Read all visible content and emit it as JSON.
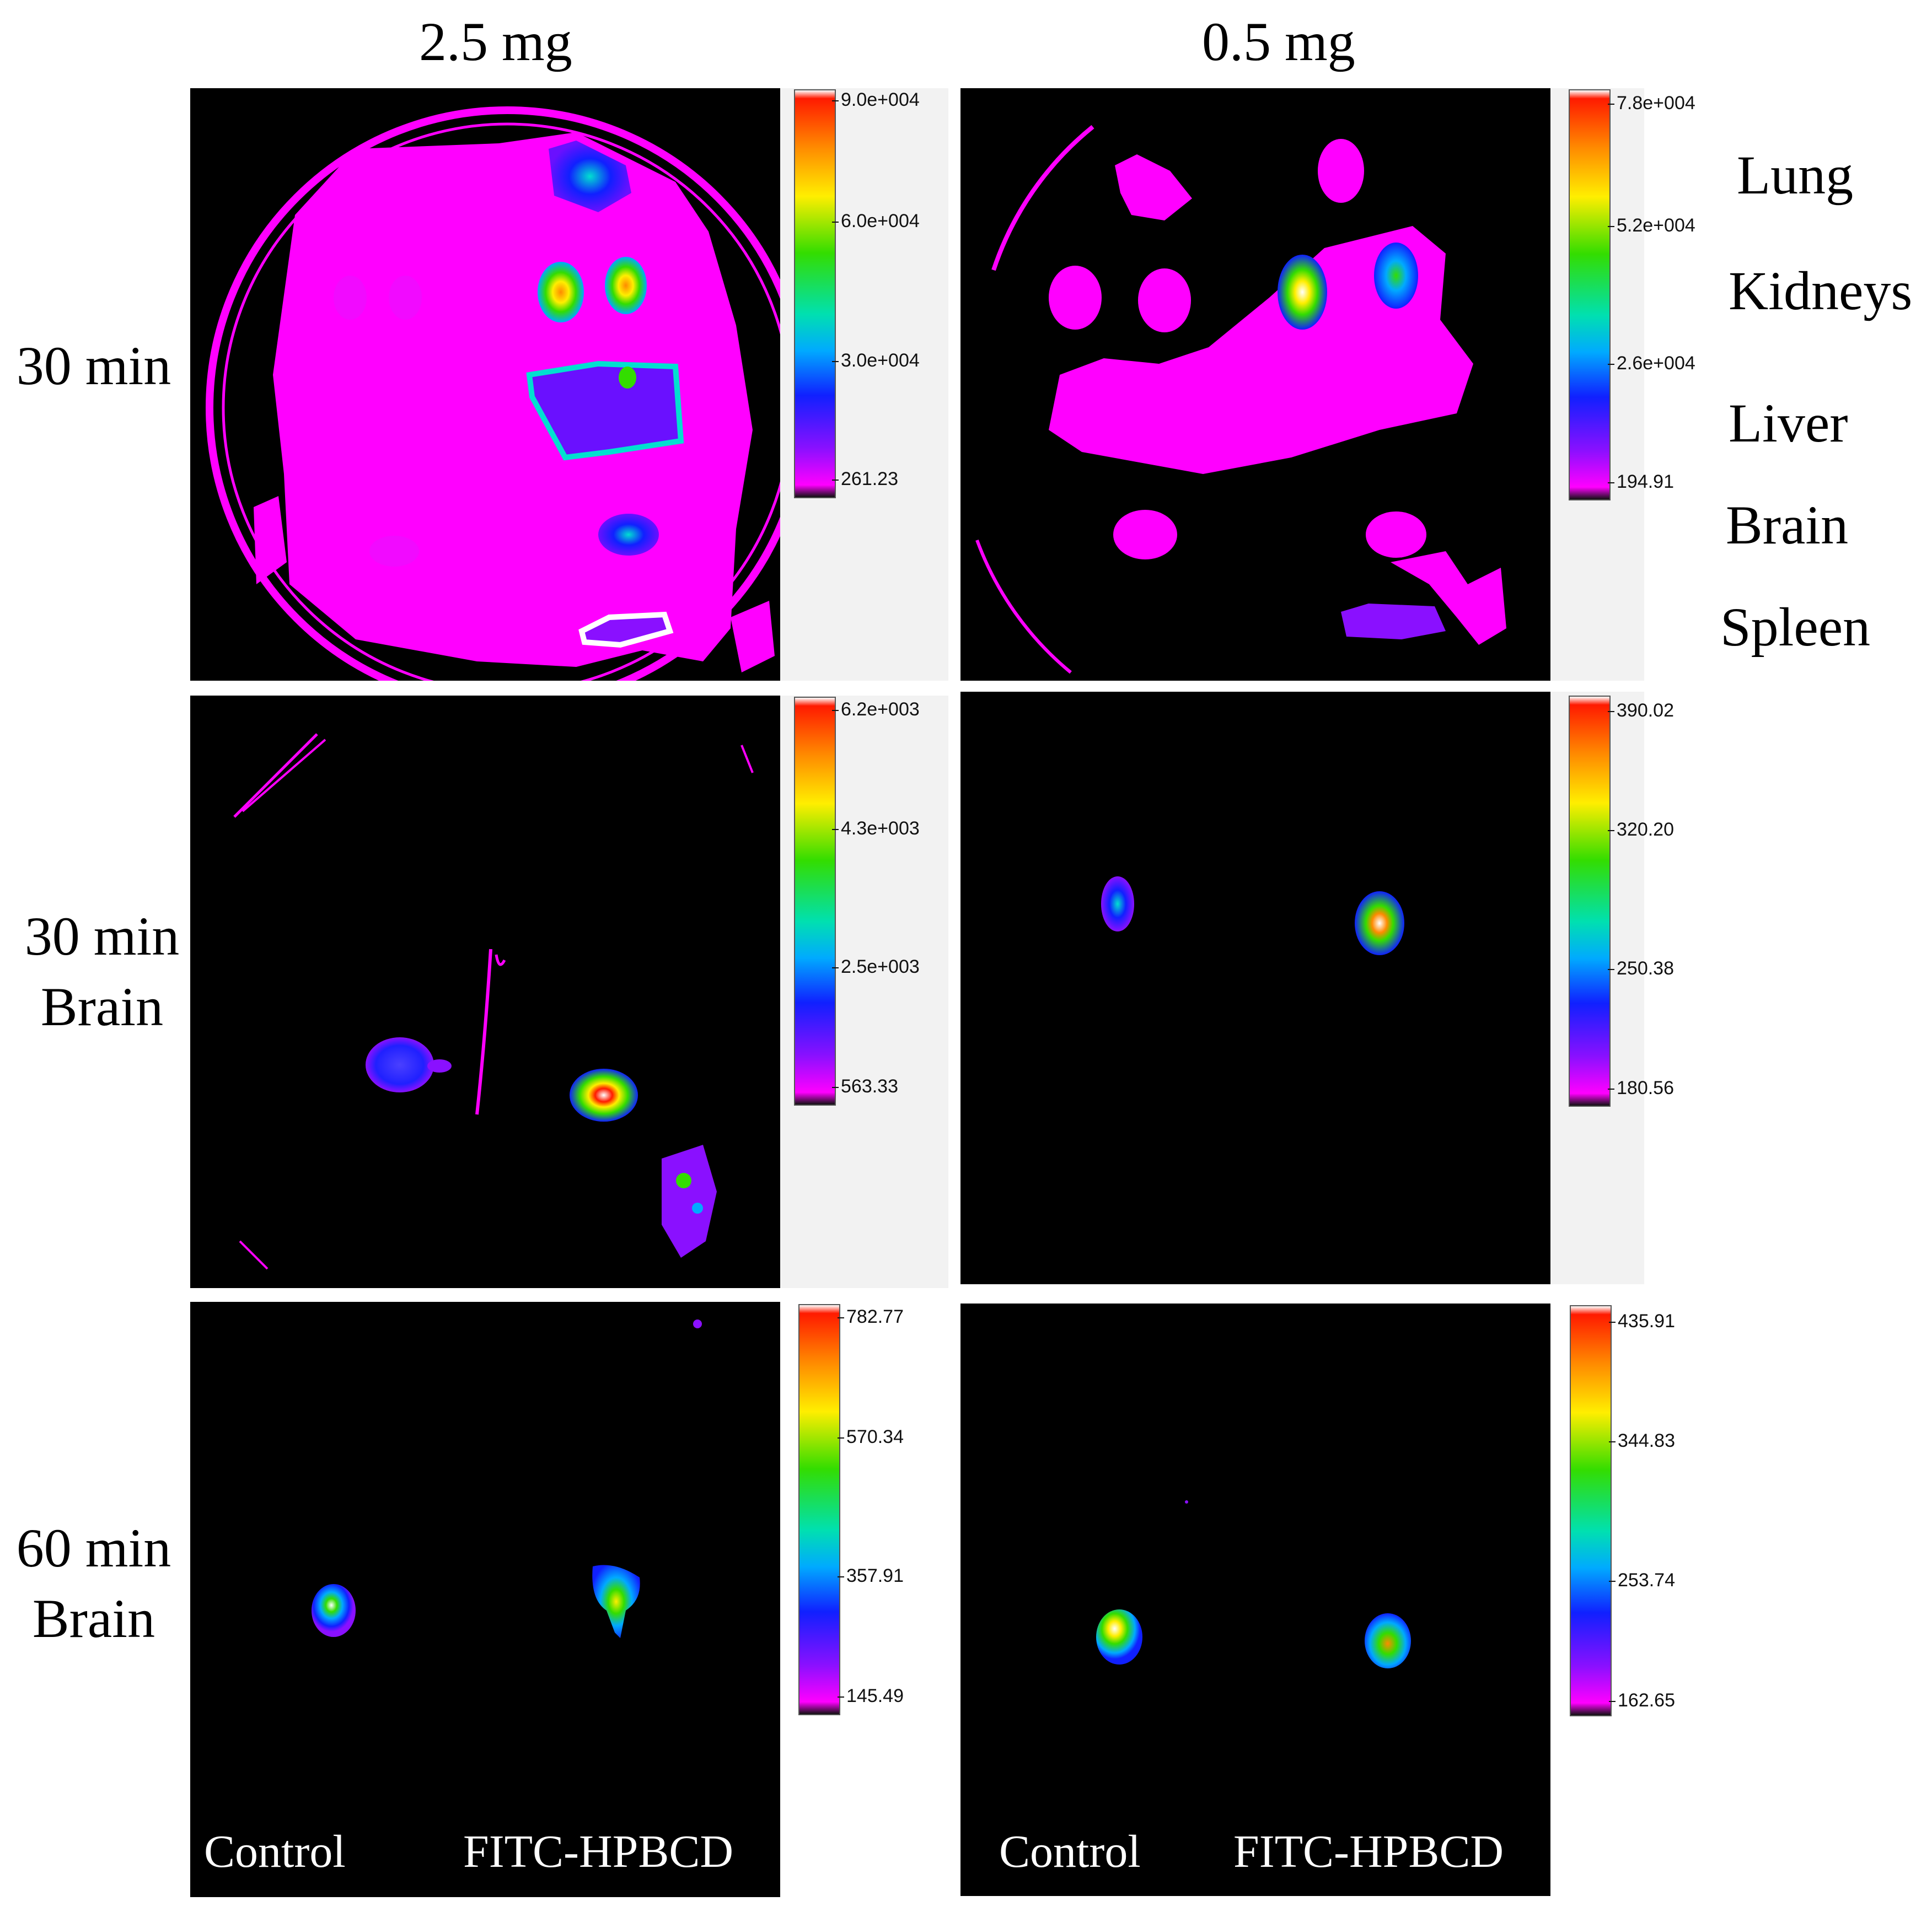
{
  "columns": {
    "left": "2.5 mg",
    "right": "0.5 mg"
  },
  "rows": [
    {
      "label_line1": "30 min",
      "label_line2": ""
    },
    {
      "label_line1": "30 min",
      "label_line2": "Brain"
    },
    {
      "label_line1": "60 min",
      "label_line2": "Brain"
    }
  ],
  "organs": [
    "Lung",
    "Kidneys",
    "Liver",
    "Brain",
    "Spleen"
  ],
  "scales": {
    "r1_left": [
      "9.0e+004",
      "6.0e+004",
      "3.0e+004",
      "261.23"
    ],
    "r1_right": [
      "7.8e+004",
      "5.2e+004",
      "2.6e+004",
      "194.91"
    ],
    "r2_left": [
      "6.2e+003",
      "4.3e+003",
      "2.5e+003",
      "563.33"
    ],
    "r2_right": [
      "390.02",
      "320.20",
      "250.38",
      "180.56"
    ],
    "r3_left": [
      "782.77",
      "570.34",
      "357.91",
      "145.49"
    ],
    "r3_right": [
      "435.91",
      "344.83",
      "253.74",
      "162.65"
    ]
  },
  "group_labels": {
    "control": "Control",
    "treated": "FITC-HPBCD"
  },
  "colors": {
    "background": "#000000",
    "tissue_low": "#ff00ff",
    "tissue_mid": "#1020ff",
    "tissue_high": "#33dd00",
    "tissue_peak": "#ff1a00"
  }
}
